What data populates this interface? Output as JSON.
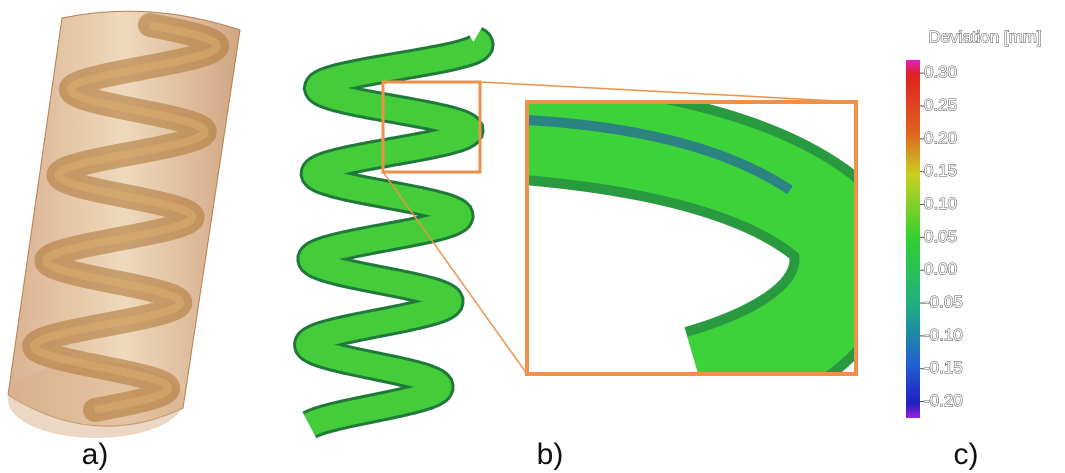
{
  "panels": {
    "a": "a)",
    "b": "b)",
    "c": "c)"
  },
  "colorbar": {
    "title": "Deviation [mm]",
    "lim": [
      -0.225,
      0.32
    ],
    "ticks": [
      {
        "value": 0.3,
        "label": "0.30"
      },
      0.25,
      {
        "value": 0.2,
        "label": "0.20"
      },
      0.15,
      {
        "value": 0.1,
        "label": "0.10"
      },
      0.05,
      {
        "value": 0,
        "label": "0.00"
      },
      -0.05,
      {
        "value": -0.1,
        "label": "-0.10"
      },
      -0.15,
      {
        "value": -0.2,
        "label": "-0.20"
      }
    ]
  }
}
